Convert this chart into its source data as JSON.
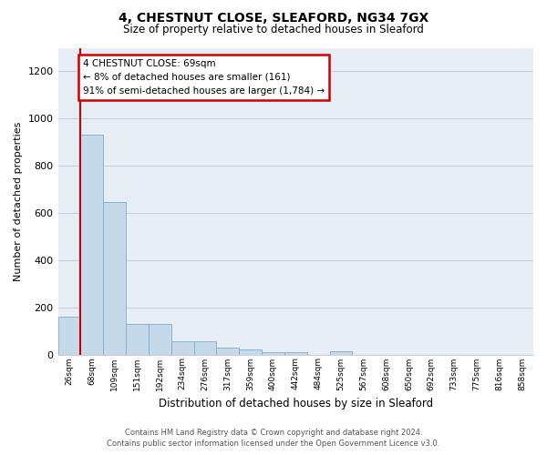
{
  "title1": "4, CHESTNUT CLOSE, SLEAFORD, NG34 7GX",
  "title2": "Size of property relative to detached houses in Sleaford",
  "xlabel": "Distribution of detached houses by size in Sleaford",
  "ylabel": "Number of detached properties",
  "bar_color": "#c5d9ea",
  "bar_edge_color": "#7aaec8",
  "bin_labels": [
    "26sqm",
    "68sqm",
    "109sqm",
    "151sqm",
    "192sqm",
    "234sqm",
    "276sqm",
    "317sqm",
    "359sqm",
    "400sqm",
    "442sqm",
    "484sqm",
    "525sqm",
    "567sqm",
    "608sqm",
    "650sqm",
    "692sqm",
    "733sqm",
    "775sqm",
    "816sqm",
    "858sqm"
  ],
  "bar_heights": [
    160,
    930,
    645,
    130,
    130,
    55,
    55,
    30,
    20,
    10,
    10,
    0,
    15,
    0,
    0,
    0,
    0,
    0,
    0,
    0,
    0
  ],
  "ylim": [
    0,
    1300
  ],
  "yticks": [
    0,
    200,
    400,
    600,
    800,
    1000,
    1200
  ],
  "property_line_x": 0.5,
  "annotation_text": "4 CHESTNUT CLOSE: 69sqm\n← 8% of detached houses are smaller (161)\n91% of semi-detached houses are larger (1,784) →",
  "footer_text": "Contains HM Land Registry data © Crown copyright and database right 2024.\nContains public sector information licensed under the Open Government Licence v3.0.",
  "bg_color": "#e8eef5",
  "grid_color": "#c8d0dc"
}
